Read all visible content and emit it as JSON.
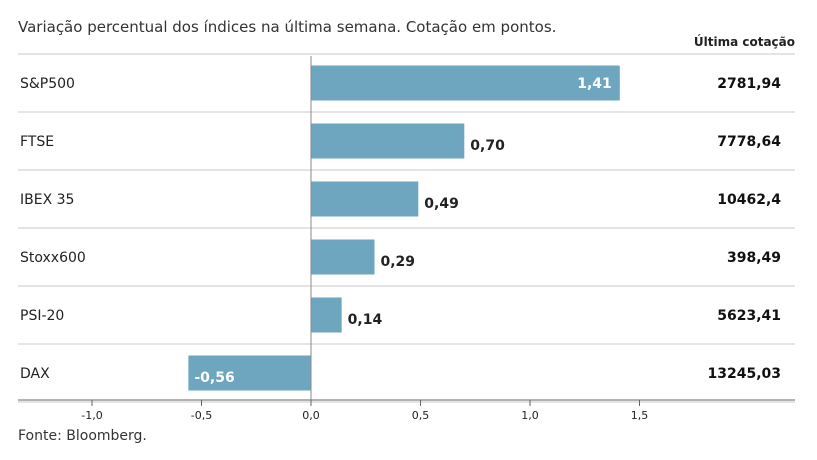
{
  "header": {
    "title": "Variação percentual dos índices na última semana. Cotação em pontos.",
    "column_title": "Última cotação"
  },
  "footer": {
    "source": "Fonte: Bloomberg."
  },
  "chart_data": {
    "type": "bar",
    "orientation": "horizontal",
    "title": "Variação percentual dos índices na última semana. Cotação em pontos.",
    "xlabel": "",
    "ylabel": "",
    "xlim": [
      -1.0,
      1.8
    ],
    "xticks": [
      -1.0,
      -0.5,
      0.0,
      0.5,
      1.0,
      1.5
    ],
    "xtick_labels": [
      "-1,0",
      "-0,5",
      "0,0",
      "0,5",
      "1,0",
      "1,5"
    ],
    "categories": [
      "S&P500",
      "FTSE",
      "IBEX 35",
      "Stoxx600",
      "PSI-20",
      "DAX"
    ],
    "values": [
      1.41,
      0.7,
      0.49,
      0.29,
      0.14,
      -0.56
    ],
    "value_labels": [
      "1,41",
      "0,70",
      "0,49",
      "0,29",
      "0,14",
      "-0,56"
    ],
    "last_quote": [
      "2781,94",
      "7778,64",
      "10462,4",
      "398,49",
      "5623,41",
      "13245,03"
    ],
    "bar_color": "#6fa6bf",
    "grid": false,
    "legend": "none"
  }
}
